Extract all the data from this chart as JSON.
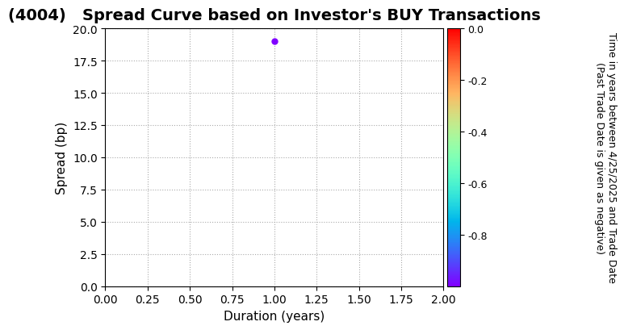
{
  "title": "(4004)   Spread Curve based on Investor's BUY Transactions",
  "xlabel": "Duration (years)",
  "ylabel": "Spread (bp)",
  "xlim": [
    0.0,
    2.0
  ],
  "ylim": [
    0.0,
    20.0
  ],
  "xticks": [
    0.0,
    0.25,
    0.5,
    0.75,
    1.0,
    1.25,
    1.5,
    1.75,
    2.0
  ],
  "yticks": [
    0.0,
    2.5,
    5.0,
    7.5,
    10.0,
    12.5,
    15.0,
    17.5,
    20.0
  ],
  "point_x": 1.0,
  "point_y": 19.0,
  "point_color_value": -1.0,
  "colorbar_label_line1": "Time in years between 4/25/2025 and Trade Date",
  "colorbar_label_line2": "(Past Trade Date is given as negative)",
  "colorbar_vmin": -1.0,
  "colorbar_vmax": 0.0,
  "colorbar_ticks": [
    0.0,
    -0.2,
    -0.4,
    -0.6,
    -0.8
  ],
  "cmap": "gist_rainbow_r",
  "grid_color": "#aaaaaa",
  "background_color": "#ffffff",
  "title_fontsize": 14,
  "title_fontweight": "bold",
  "axis_label_fontsize": 11,
  "tick_fontsize": 10,
  "colorbar_tick_fontsize": 9,
  "colorbar_label_fontsize": 9
}
